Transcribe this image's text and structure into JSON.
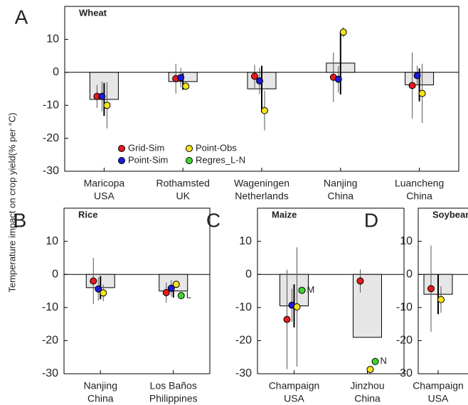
{
  "chart_data": [
    {
      "type": "bar",
      "letter": "A",
      "title": "Wheat",
      "legend": true,
      "categories": [
        [
          "Maricopa",
          "USA"
        ],
        [
          "Rothamsted",
          "UK"
        ],
        [
          "Wageningen",
          "Netherlands"
        ],
        [
          "Nanjing",
          "China"
        ],
        [
          "Luancheng",
          "China"
        ]
      ],
      "bars": {
        "color": "#e6e6e6",
        "values": [
          -8.2,
          -2.8,
          -5,
          2.8,
          -3.8
        ],
        "errors": [
          5,
          2.5,
          7,
          9.5,
          5
        ]
      },
      "series": [
        {
          "name": "Grid-Sim",
          "color": "#e8191c",
          "values": [
            -7.3,
            -1.9,
            -1.2,
            -1.5,
            -4
          ],
          "errors": [
            3.5,
            4.5,
            3.5,
            7.5,
            10
          ]
        },
        {
          "name": "Point-Sim",
          "color": "#1a1adb",
          "values": [
            -7.3,
            -1.6,
            -2.6,
            -2.1,
            -1
          ],
          "errors": [
            4.5,
            3,
            4,
            4,
            3
          ]
        },
        {
          "name": "Point-Obs",
          "color": "#f5e31c",
          "values": [
            -10,
            -4.2,
            -11.6,
            12.2,
            -6.4
          ],
          "errors": [
            7,
            1,
            6,
            1.5,
            9
          ]
        },
        {
          "name": "Regres_L-N",
          "color": "#3ed62e",
          "values": [
            null,
            null,
            null,
            null,
            null
          ],
          "errors": [
            null,
            null,
            null,
            null,
            null
          ]
        }
      ],
      "ylim": [
        -30,
        20
      ],
      "yticks": [
        -30,
        -20,
        -10,
        0,
        10
      ]
    },
    {
      "type": "bar",
      "letter": "B",
      "title": "Rice",
      "ylabel": "Temperature impact on crop yield(% per °C)",
      "categories": [
        [
          "Nanjing",
          "China"
        ],
        [
          "Los Baños",
          "Philippines"
        ]
      ],
      "bars": {
        "color": "#e6e6e6",
        "values": [
          -4,
          -5
        ],
        "errors": [
          3.5,
          2
        ]
      },
      "series": [
        {
          "name": "Grid-Sim",
          "color": "#e8191c",
          "values": [
            -2,
            -5.5
          ],
          "errors": [
            7,
            3
          ]
        },
        {
          "name": "Point-Sim",
          "color": "#1a1adb",
          "values": [
            -4.4,
            -4.2
          ],
          "errors": [
            3.5,
            2.5
          ]
        },
        {
          "name": "Point-Obs",
          "color": "#f5e31c",
          "values": [
            -5.6,
            -3
          ],
          "errors": [
            2.5,
            1
          ]
        },
        {
          "name": "Regres_L-N",
          "color": "#3ed62e",
          "values": [
            null,
            -6.4
          ],
          "errors": [
            null,
            null
          ],
          "point_labels": [
            null,
            "L"
          ]
        }
      ],
      "ylim": [
        -30,
        20
      ],
      "yticks": [
        -30,
        -20,
        -10,
        0,
        10
      ]
    },
    {
      "type": "bar",
      "letter": "C",
      "title": "Maize",
      "categories": [
        [
          "Champaign",
          "USA"
        ],
        [
          "Jinzhou",
          "China"
        ]
      ],
      "bars": {
        "color": "#e6e6e6",
        "values": [
          -9.5,
          -19
        ],
        "errors": [
          6.5,
          null
        ]
      },
      "series": [
        {
          "name": "Grid-Sim",
          "color": "#e8191c",
          "values": [
            -13.6,
            -2
          ],
          "errors": [
            15,
            3.5
          ]
        },
        {
          "name": "Point-Sim",
          "color": "#1a1adb",
          "values": [
            -9.3,
            null
          ],
          "errors": [
            5,
            null
          ]
        },
        {
          "name": "Point-Obs",
          "color": "#f5e31c",
          "values": [
            -9.8,
            -28.7
          ],
          "errors": [
            18,
            null
          ]
        },
        {
          "name": "Regres_L-N",
          "color": "#3ed62e",
          "values": [
            -4.8,
            -26.3
          ],
          "errors": [
            null,
            null
          ],
          "point_labels": [
            "M",
            "N"
          ]
        }
      ],
      "ylim": [
        -30,
        20
      ],
      "yticks": [
        -30,
        -20,
        -10,
        0,
        10
      ]
    },
    {
      "type": "bar",
      "letter": "D",
      "title": "Soybean",
      "categories": [
        [
          "Champaign",
          "USA"
        ]
      ],
      "bars": {
        "color": "#e6e6e6",
        "values": [
          -6
        ],
        "errors": [
          6
        ]
      },
      "series": [
        {
          "name": "Grid-Sim",
          "color": "#e8191c",
          "values": [
            -4.3
          ],
          "errors": [
            13
          ]
        },
        {
          "name": "Point-Obs",
          "color": "#f5e31c",
          "values": [
            -7.6
          ],
          "errors": [
            4
          ]
        }
      ],
      "ylim": [
        -30,
        20
      ],
      "yticks": [
        -30,
        -20,
        -10,
        0,
        10
      ]
    }
  ]
}
